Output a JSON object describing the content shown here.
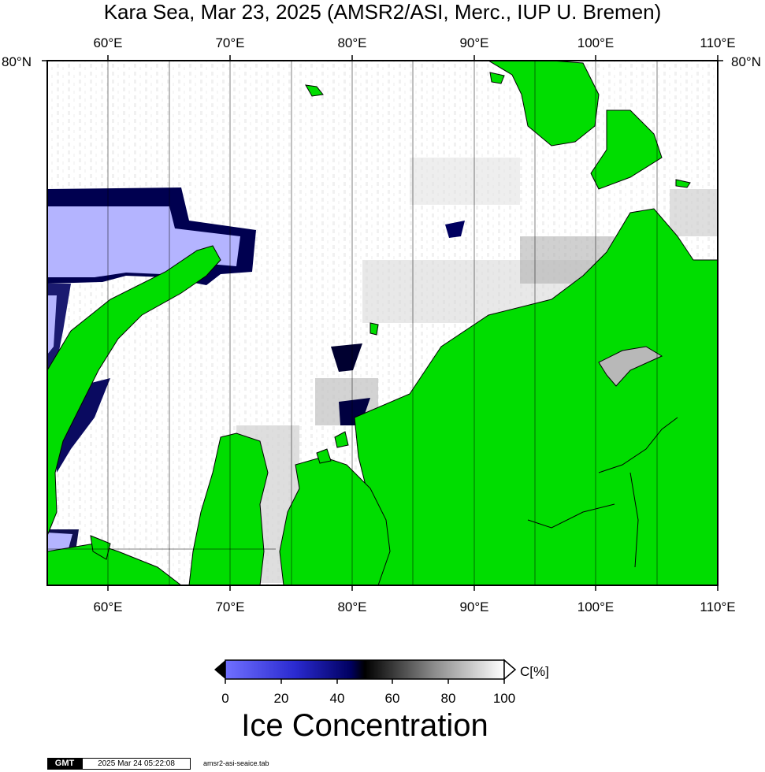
{
  "title": "Kara Sea, Mar 23, 2025 (AMSR2/ASI, Merc., IUP U. Bremen)",
  "map": {
    "region": "Kara Sea",
    "projection": "Mercator",
    "lon_range": [
      55,
      110
    ],
    "lat_north_label": "80°N",
    "lon_ticks": [
      "60°E",
      "70°E",
      "80°E",
      "90°E",
      "100°E",
      "110°E"
    ],
    "land_color": "#00dd00",
    "open_water_color": "#b4b4ff"
  },
  "colorbar": {
    "title": "Ice Concentration",
    "unit": "C[%]",
    "ticks": [
      "0",
      "20",
      "40",
      "60",
      "80",
      "100"
    ],
    "range": [
      0,
      100
    ],
    "stops": [
      "#7070ff",
      "#000080",
      "#000000",
      "#808080",
      "#ffffff"
    ]
  },
  "footer": {
    "badge": "GMT",
    "timestamp": "2025 Mar 24 05:22:08",
    "filename": "amsr2-asi-seaice.tab"
  }
}
